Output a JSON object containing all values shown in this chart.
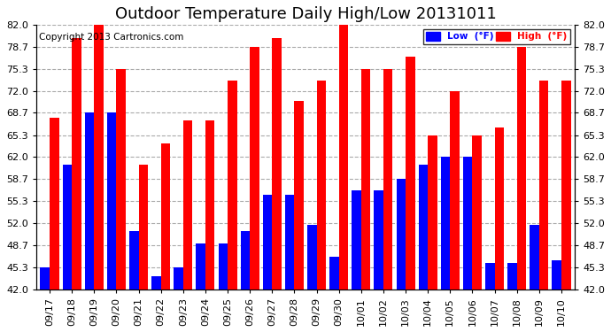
{
  "title": "Outdoor Temperature Daily High/Low 20131011",
  "copyright": "Copyright 2013 Cartronics.com",
  "legend_labels": [
    "Low  (°F)",
    "High  (°F)"
  ],
  "legend_colors": [
    "#0000ff",
    "#ff0000"
  ],
  "dates": [
    "09/17",
    "09/18",
    "09/19",
    "09/20",
    "09/21",
    "09/22",
    "09/23",
    "09/24",
    "09/25",
    "09/26",
    "09/27",
    "09/28",
    "09/29",
    "09/30",
    "10/01",
    "10/02",
    "10/03",
    "10/04",
    "10/05",
    "10/06",
    "10/07",
    "10/08",
    "10/09",
    "10/10"
  ],
  "highs": [
    68.0,
    80.0,
    82.0,
    75.3,
    60.8,
    64.0,
    67.5,
    67.5,
    73.5,
    78.7,
    80.0,
    70.5,
    73.5,
    82.0,
    75.3,
    75.3,
    77.2,
    65.3,
    72.0,
    65.3,
    66.5,
    78.7,
    73.5,
    73.5
  ],
  "lows": [
    45.3,
    60.8,
    68.7,
    68.7,
    50.8,
    44.0,
    45.3,
    49.0,
    49.0,
    50.8,
    56.3,
    56.3,
    51.8,
    47.0,
    57.0,
    57.0,
    58.7,
    60.8,
    62.0,
    62.0,
    46.0,
    46.0,
    51.8,
    46.4
  ],
  "ylim": [
    42.0,
    82.0
  ],
  "ybase": 42.0,
  "yticks": [
    42.0,
    45.3,
    48.7,
    52.0,
    55.3,
    58.7,
    62.0,
    65.3,
    68.7,
    72.0,
    75.3,
    78.7,
    82.0
  ],
  "bar_width": 0.42,
  "background_color": "#ffffff",
  "plot_bg_color": "#ffffff",
  "grid_color": "#aaaaaa",
  "low_color": "#0000ff",
  "high_color": "#ff0000",
  "title_fontsize": 13,
  "tick_fontsize": 8,
  "copyright_fontsize": 7.5
}
